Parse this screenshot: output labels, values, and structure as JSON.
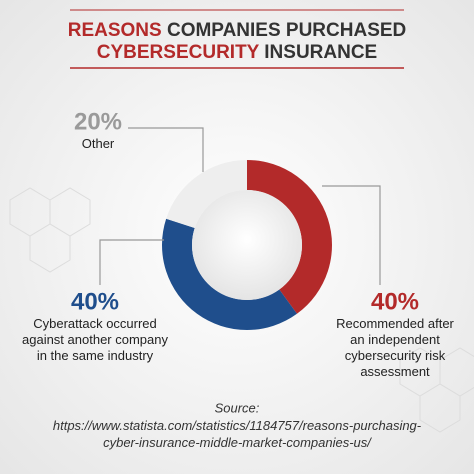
{
  "chart_data": {
    "type": "donut",
    "title_lines": [
      [
        {
          "text": "REASONS",
          "color": "#b32a2a"
        },
        {
          "text": "COMPANIES PURCHASED",
          "color": "#333333"
        }
      ],
      [
        {
          "text": "CYBERSECURITY",
          "color": "#b32a2a"
        },
        {
          "text": "INSURANCE",
          "color": "#333333"
        }
      ]
    ],
    "categories": [
      "Recommended after\nan independent\ncybersecurity risk\nassessment",
      "Cyberattack occurred\nagainst another company\nin the same industry",
      "Other"
    ],
    "values": [
      40,
      40,
      20
    ],
    "value_labels": [
      "40%",
      "40%",
      "20%"
    ],
    "colors": [
      "#b32a2a",
      "#1f4e8c",
      "#eeeeee"
    ],
    "label_colors": [
      "#b32a2a",
      "#1f4e8c",
      "#9a9a9a"
    ],
    "source_label": "Source:",
    "source": "https://www.statista.com/statistics/1184757/reasons-purchasing-\ncyber-insurance-middle-market-companies-us/"
  }
}
